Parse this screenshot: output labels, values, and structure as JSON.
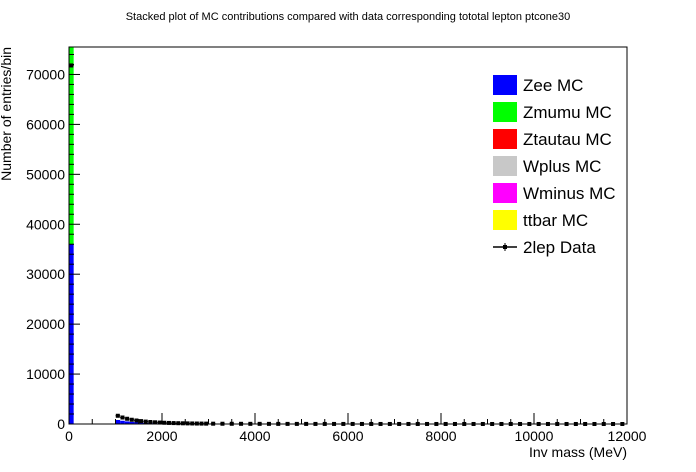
{
  "chart_data": {
    "type": "bar",
    "title": "Stacked plot of MC contributions compared with data corresponding tototal lepton ptcone30",
    "xlabel": "Inv mass (MeV)",
    "ylabel": "Number of entries/bin",
    "xlim": [
      0,
      12000
    ],
    "ylim": [
      0,
      75500
    ],
    "x_ticks": [
      0,
      2000,
      4000,
      6000,
      8000,
      10000,
      12000
    ],
    "y_ticks": [
      0,
      10000,
      20000,
      30000,
      40000,
      50000,
      60000,
      70000
    ],
    "x_tick_labels": [
      "0",
      "2000",
      "4000",
      "6000",
      "8000",
      "10000",
      "12000"
    ],
    "y_tick_labels": [
      "0",
      "10000",
      "20000",
      "30000",
      "40000",
      "50000",
      "60000",
      "70000"
    ],
    "bin_width": 100,
    "legend_position": "top-right",
    "stack_order": [
      "Zee MC",
      "Zmumu MC",
      "Ztautau MC",
      "Wplus MC",
      "Wminus MC",
      "ttbar MC"
    ],
    "series": [
      {
        "name": "Zee MC",
        "color": "#0000ff",
        "bins": [
          [
            0,
            36000
          ],
          [
            1000,
            800
          ],
          [
            1100,
            650
          ],
          [
            1200,
            520
          ],
          [
            1300,
            420
          ],
          [
            1400,
            340
          ],
          [
            1500,
            280
          ],
          [
            1600,
            230
          ],
          [
            1700,
            190
          ],
          [
            1800,
            160
          ]
        ]
      },
      {
        "name": "Zmumu MC",
        "color": "#00ff00",
        "bins": [
          [
            0,
            39500
          ]
        ]
      },
      {
        "name": "Ztautau MC",
        "color": "#ff0000",
        "bins": []
      },
      {
        "name": "Wplus MC",
        "color": "#c8c8c8",
        "bins": []
      },
      {
        "name": "Wminus MC",
        "color": "#ff00ff",
        "bins": []
      },
      {
        "name": "ttbar MC",
        "color": "#ffff00",
        "bins": []
      },
      {
        "name": "2lep Data",
        "color": "#000000",
        "style": "points",
        "x": [
          50,
          1050,
          1150,
          1250,
          1350,
          1450,
          1550,
          1650,
          1750,
          1850,
          1950,
          2050,
          2150,
          2250,
          2350,
          2450,
          2550,
          2650,
          2750,
          2850,
          2950,
          3100,
          3300,
          3500,
          3700,
          3900,
          4100,
          4300,
          4500,
          4700,
          4900,
          5100,
          5300,
          5500,
          5700,
          5900,
          6100,
          6300,
          6500,
          6700,
          6900,
          7100,
          7300,
          7500,
          7700,
          7900,
          8100,
          8300,
          8500,
          8700,
          8900,
          9100,
          9300,
          9500,
          9700,
          9900,
          10100,
          10300,
          10500,
          10700,
          10900,
          11100,
          11300,
          11500,
          11700,
          11900
        ],
        "y": [
          71800,
          1650,
          1300,
          1050,
          850,
          700,
          580,
          480,
          400,
          340,
          290,
          250,
          215,
          185,
          160,
          140,
          122,
          107,
          94,
          83,
          74,
          62,
          52,
          44,
          38,
          33,
          29,
          25,
          22,
          20,
          18,
          16,
          14,
          13,
          12,
          11,
          10,
          9,
          8,
          8,
          7,
          7,
          6,
          6,
          5,
          5,
          5,
          4,
          4,
          4,
          4,
          3,
          3,
          3,
          3,
          3,
          2,
          2,
          2,
          2,
          2,
          2,
          2,
          1,
          1,
          1
        ]
      }
    ]
  }
}
